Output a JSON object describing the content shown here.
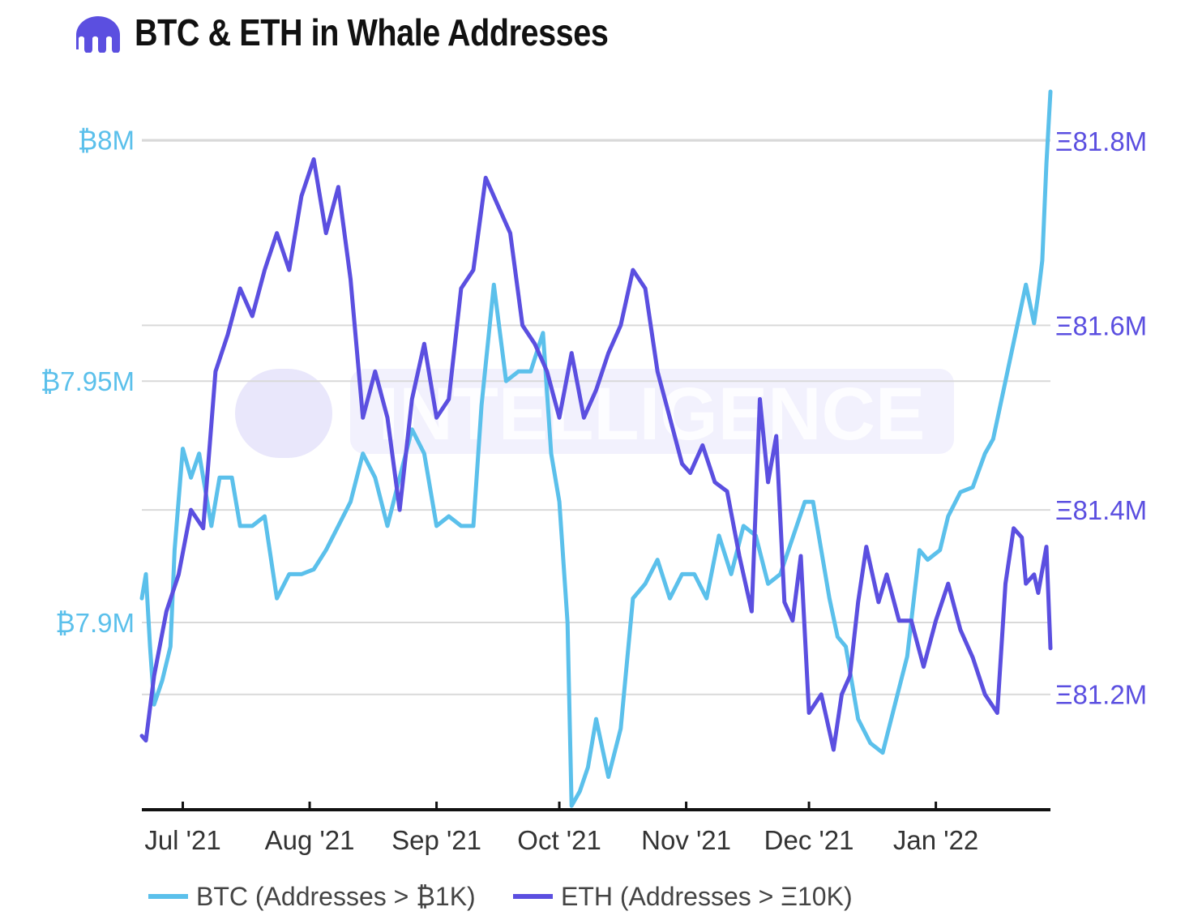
{
  "colors": {
    "btc": "#5bc0eb",
    "eth": "#5b4fe0",
    "grid": "#d9d9d9",
    "axis": "#111111",
    "title": "#111111",
    "watermark": "#e9e7fb"
  },
  "header": {
    "title": "BTC & ETH in Whale Addresses",
    "logo_icon": "kraken-logo-icon"
  },
  "watermark": {
    "text": "INTELLIGENCE",
    "icon": "kraken-logo-icon"
  },
  "chart_data": {
    "type": "line",
    "title": "BTC & ETH in Whale Addresses",
    "x_ticks": [
      "Jul '21",
      "Aug '21",
      "Sep '21",
      "Oct '21",
      "Nov '21",
      "Dec '21",
      "Jan '22"
    ],
    "x_range": [
      "2021-06-21",
      "2022-01-29"
    ],
    "left_axis": {
      "ticks": [
        7.9,
        7.95,
        8.0
      ],
      "tick_labels": [
        "₿7.9M",
        "₿7.95M",
        "₿8M"
      ],
      "range": [
        7.8612,
        8.0147
      ]
    },
    "right_axis": {
      "ticks": [
        81.2,
        81.4,
        81.6,
        81.8
      ],
      "tick_labels": [
        "Ξ81.2M",
        "Ξ81.4M",
        "Ξ81.6M",
        "Ξ81.8M"
      ],
      "range": [
        81.075,
        81.878
      ]
    },
    "grid": true,
    "legend_position": "bottom-left",
    "series": [
      {
        "name": "BTC (Addresses > ₿1K)",
        "axis": "left",
        "x": [
          "2021-06-21",
          "2021-06-22",
          "2021-06-23",
          "2021-06-24",
          "2021-06-26",
          "2021-06-28",
          "2021-06-29",
          "2021-07-01",
          "2021-07-03",
          "2021-07-05",
          "2021-07-08",
          "2021-07-10",
          "2021-07-13",
          "2021-07-15",
          "2021-07-18",
          "2021-07-21",
          "2021-07-24",
          "2021-07-27",
          "2021-07-30",
          "2021-08-02",
          "2021-08-05",
          "2021-08-08",
          "2021-08-11",
          "2021-08-14",
          "2021-08-17",
          "2021-08-20",
          "2021-08-23",
          "2021-08-26",
          "2021-08-29",
          "2021-09-01",
          "2021-09-04",
          "2021-09-07",
          "2021-09-10",
          "2021-09-12",
          "2021-09-15",
          "2021-09-18",
          "2021-09-21",
          "2021-09-24",
          "2021-09-27",
          "2021-09-29",
          "2021-10-01",
          "2021-10-03",
          "2021-10-04",
          "2021-10-06",
          "2021-10-08",
          "2021-10-10",
          "2021-10-13",
          "2021-10-16",
          "2021-10-19",
          "2021-10-22",
          "2021-10-25",
          "2021-10-28",
          "2021-10-31",
          "2021-11-03",
          "2021-11-06",
          "2021-11-09",
          "2021-11-12",
          "2021-11-15",
          "2021-11-18",
          "2021-11-21",
          "2021-11-24",
          "2021-11-26",
          "2021-11-28",
          "2021-11-30",
          "2021-12-02",
          "2021-12-04",
          "2021-12-06",
          "2021-12-08",
          "2021-12-10",
          "2021-12-13",
          "2021-12-16",
          "2021-12-19",
          "2021-12-22",
          "2021-12-25",
          "2021-12-28",
          "2021-12-30",
          "2022-01-02",
          "2022-01-04",
          "2022-01-07",
          "2022-01-10",
          "2022-01-13",
          "2022-01-15",
          "2022-01-18",
          "2022-01-21",
          "2022-01-23",
          "2022-01-25",
          "2022-01-26",
          "2022-01-27",
          "2022-01-28",
          "2022-01-29"
        ],
        "values": [
          7.905,
          7.91,
          7.895,
          7.883,
          7.888,
          7.895,
          7.915,
          7.936,
          7.93,
          7.935,
          7.92,
          7.93,
          7.93,
          7.92,
          7.92,
          7.922,
          7.905,
          7.91,
          7.91,
          7.911,
          7.915,
          7.92,
          7.925,
          7.935,
          7.93,
          7.92,
          7.93,
          7.94,
          7.935,
          7.92,
          7.922,
          7.92,
          7.92,
          7.945,
          7.97,
          7.95,
          7.952,
          7.952,
          7.96,
          7.935,
          7.925,
          7.9,
          7.862,
          7.865,
          7.87,
          7.88,
          7.868,
          7.878,
          7.905,
          7.908,
          7.913,
          7.905,
          7.91,
          7.91,
          7.905,
          7.918,
          7.91,
          7.92,
          7.918,
          7.908,
          7.91,
          7.915,
          7.92,
          7.925,
          7.925,
          7.915,
          7.905,
          7.897,
          7.895,
          7.88,
          7.875,
          7.873,
          7.883,
          7.893,
          7.915,
          7.913,
          7.915,
          7.922,
          7.927,
          7.928,
          7.935,
          7.938,
          7.95,
          7.962,
          7.97,
          7.962,
          7.968,
          7.975,
          7.995,
          8.01
        ]
      },
      {
        "name": "ETH (Addresses > Ξ10K)",
        "axis": "right",
        "x": [
          "2021-06-21",
          "2021-06-22",
          "2021-06-24",
          "2021-06-27",
          "2021-06-30",
          "2021-07-03",
          "2021-07-06",
          "2021-07-09",
          "2021-07-12",
          "2021-07-15",
          "2021-07-18",
          "2021-07-21",
          "2021-07-24",
          "2021-07-27",
          "2021-07-30",
          "2021-08-02",
          "2021-08-05",
          "2021-08-08",
          "2021-08-11",
          "2021-08-14",
          "2021-08-17",
          "2021-08-20",
          "2021-08-23",
          "2021-08-26",
          "2021-08-29",
          "2021-09-01",
          "2021-09-04",
          "2021-09-07",
          "2021-09-10",
          "2021-09-13",
          "2021-09-16",
          "2021-09-19",
          "2021-09-22",
          "2021-09-25",
          "2021-09-28",
          "2021-10-01",
          "2021-10-04",
          "2021-10-07",
          "2021-10-10",
          "2021-10-13",
          "2021-10-16",
          "2021-10-19",
          "2021-10-22",
          "2021-10-25",
          "2021-10-28",
          "2021-10-31",
          "2021-11-02",
          "2021-11-05",
          "2021-11-08",
          "2021-11-11",
          "2021-11-14",
          "2021-11-17",
          "2021-11-19",
          "2021-11-21",
          "2021-11-23",
          "2021-11-25",
          "2021-11-27",
          "2021-11-29",
          "2021-12-01",
          "2021-12-04",
          "2021-12-07",
          "2021-12-09",
          "2021-12-11",
          "2021-12-13",
          "2021-12-15",
          "2021-12-18",
          "2021-12-20",
          "2021-12-23",
          "2021-12-26",
          "2021-12-29",
          "2022-01-01",
          "2022-01-04",
          "2022-01-07",
          "2022-01-10",
          "2022-01-13",
          "2022-01-16",
          "2022-01-18",
          "2022-01-20",
          "2022-01-22",
          "2022-01-23",
          "2022-01-25",
          "2022-01-26",
          "2022-01-28",
          "2022-01-29"
        ],
        "values": [
          81.155,
          81.15,
          81.22,
          81.29,
          81.33,
          81.4,
          81.38,
          81.55,
          81.59,
          81.64,
          81.61,
          81.66,
          81.7,
          81.66,
          81.74,
          81.78,
          81.7,
          81.75,
          81.65,
          81.5,
          81.55,
          81.5,
          81.4,
          81.52,
          81.58,
          81.5,
          81.52,
          81.64,
          81.66,
          81.76,
          81.73,
          81.7,
          81.6,
          81.58,
          81.55,
          81.5,
          81.57,
          81.5,
          81.53,
          81.57,
          81.6,
          81.66,
          81.64,
          81.55,
          81.5,
          81.45,
          81.44,
          81.47,
          81.43,
          81.42,
          81.35,
          81.29,
          81.52,
          81.43,
          81.48,
          81.3,
          81.28,
          81.35,
          81.18,
          81.2,
          81.14,
          81.2,
          81.22,
          81.3,
          81.36,
          81.3,
          81.33,
          81.28,
          81.28,
          81.23,
          81.28,
          81.32,
          81.27,
          81.24,
          81.2,
          81.18,
          81.32,
          81.38,
          81.37,
          81.32,
          81.33,
          81.31,
          81.36,
          81.25
        ]
      }
    ]
  },
  "legend": {
    "btc_label": "BTC (Addresses > ₿1K)",
    "eth_label": "ETH (Addresses > Ξ10K)"
  }
}
